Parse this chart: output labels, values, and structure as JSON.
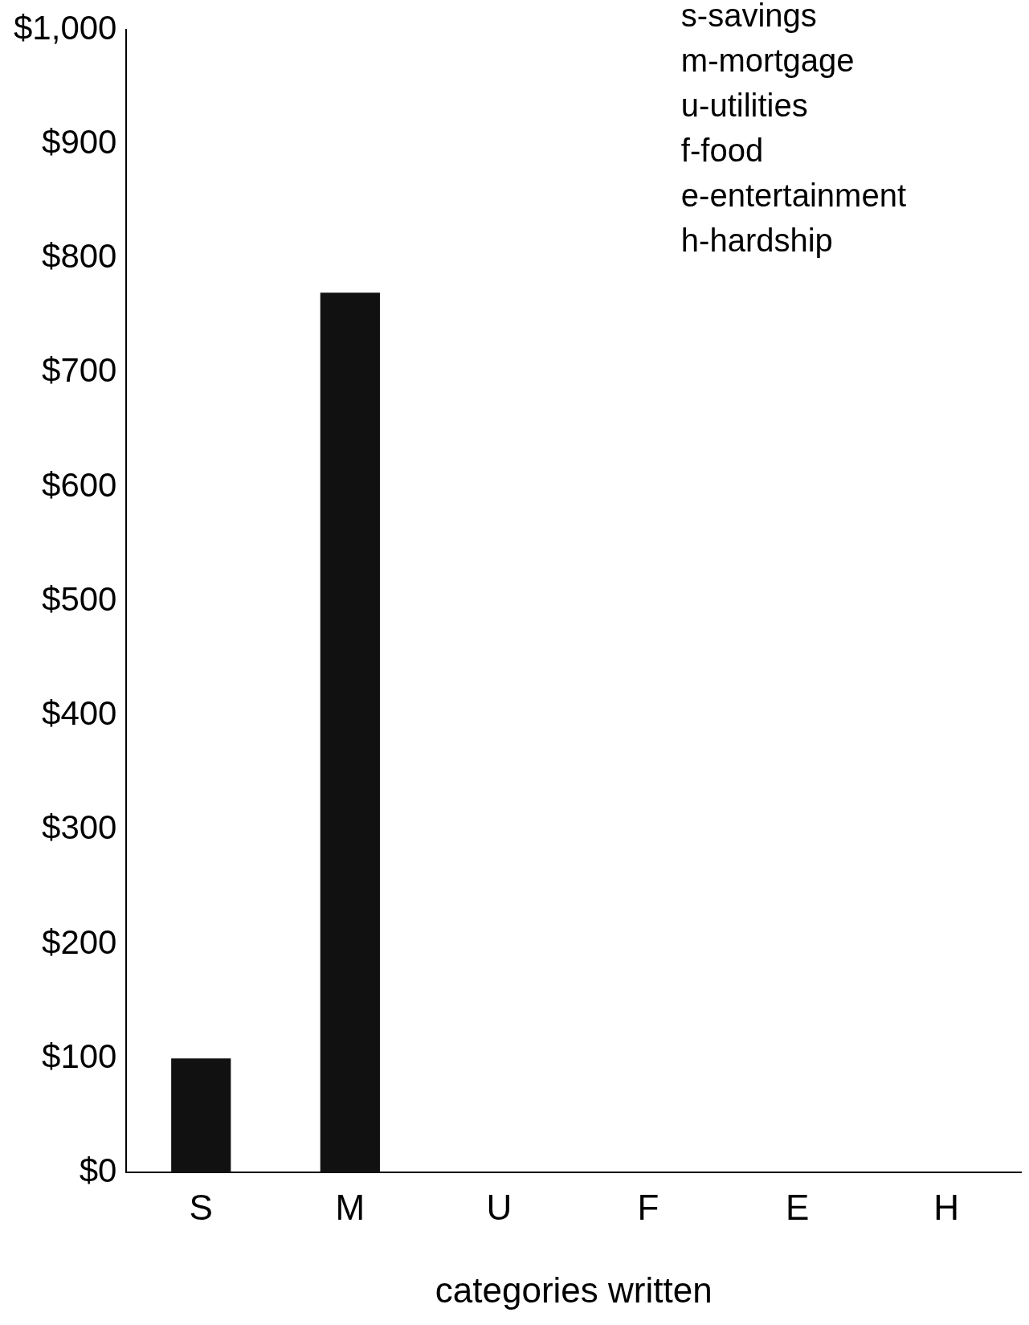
{
  "chart_data": {
    "type": "bar",
    "xlabel": "categories written",
    "categories": [
      "S",
      "M",
      "U",
      "F",
      "E",
      "H"
    ],
    "values": [
      100,
      770,
      0,
      0,
      0,
      0
    ],
    "color": "#111111",
    "ylim": [
      0,
      1000
    ],
    "yticks": [
      {
        "value": 0,
        "label": "$0"
      },
      {
        "value": 100,
        "label": "$100"
      },
      {
        "value": 200,
        "label": "$200"
      },
      {
        "value": 300,
        "label": "$300"
      },
      {
        "value": 400,
        "label": "$400"
      },
      {
        "value": 500,
        "label": "$500"
      },
      {
        "value": 600,
        "label": "$600"
      },
      {
        "value": 700,
        "label": "$700"
      },
      {
        "value": 800,
        "label": "$800"
      },
      {
        "value": 900,
        "label": "$900"
      },
      {
        "value": 1000,
        "label": "$1,000"
      }
    ],
    "grid": false,
    "legend": false,
    "annotations": [
      "s-savings",
      "m-mortgage",
      "u-utilities",
      "f-food",
      "e-entertainment",
      "h-hardship"
    ]
  }
}
